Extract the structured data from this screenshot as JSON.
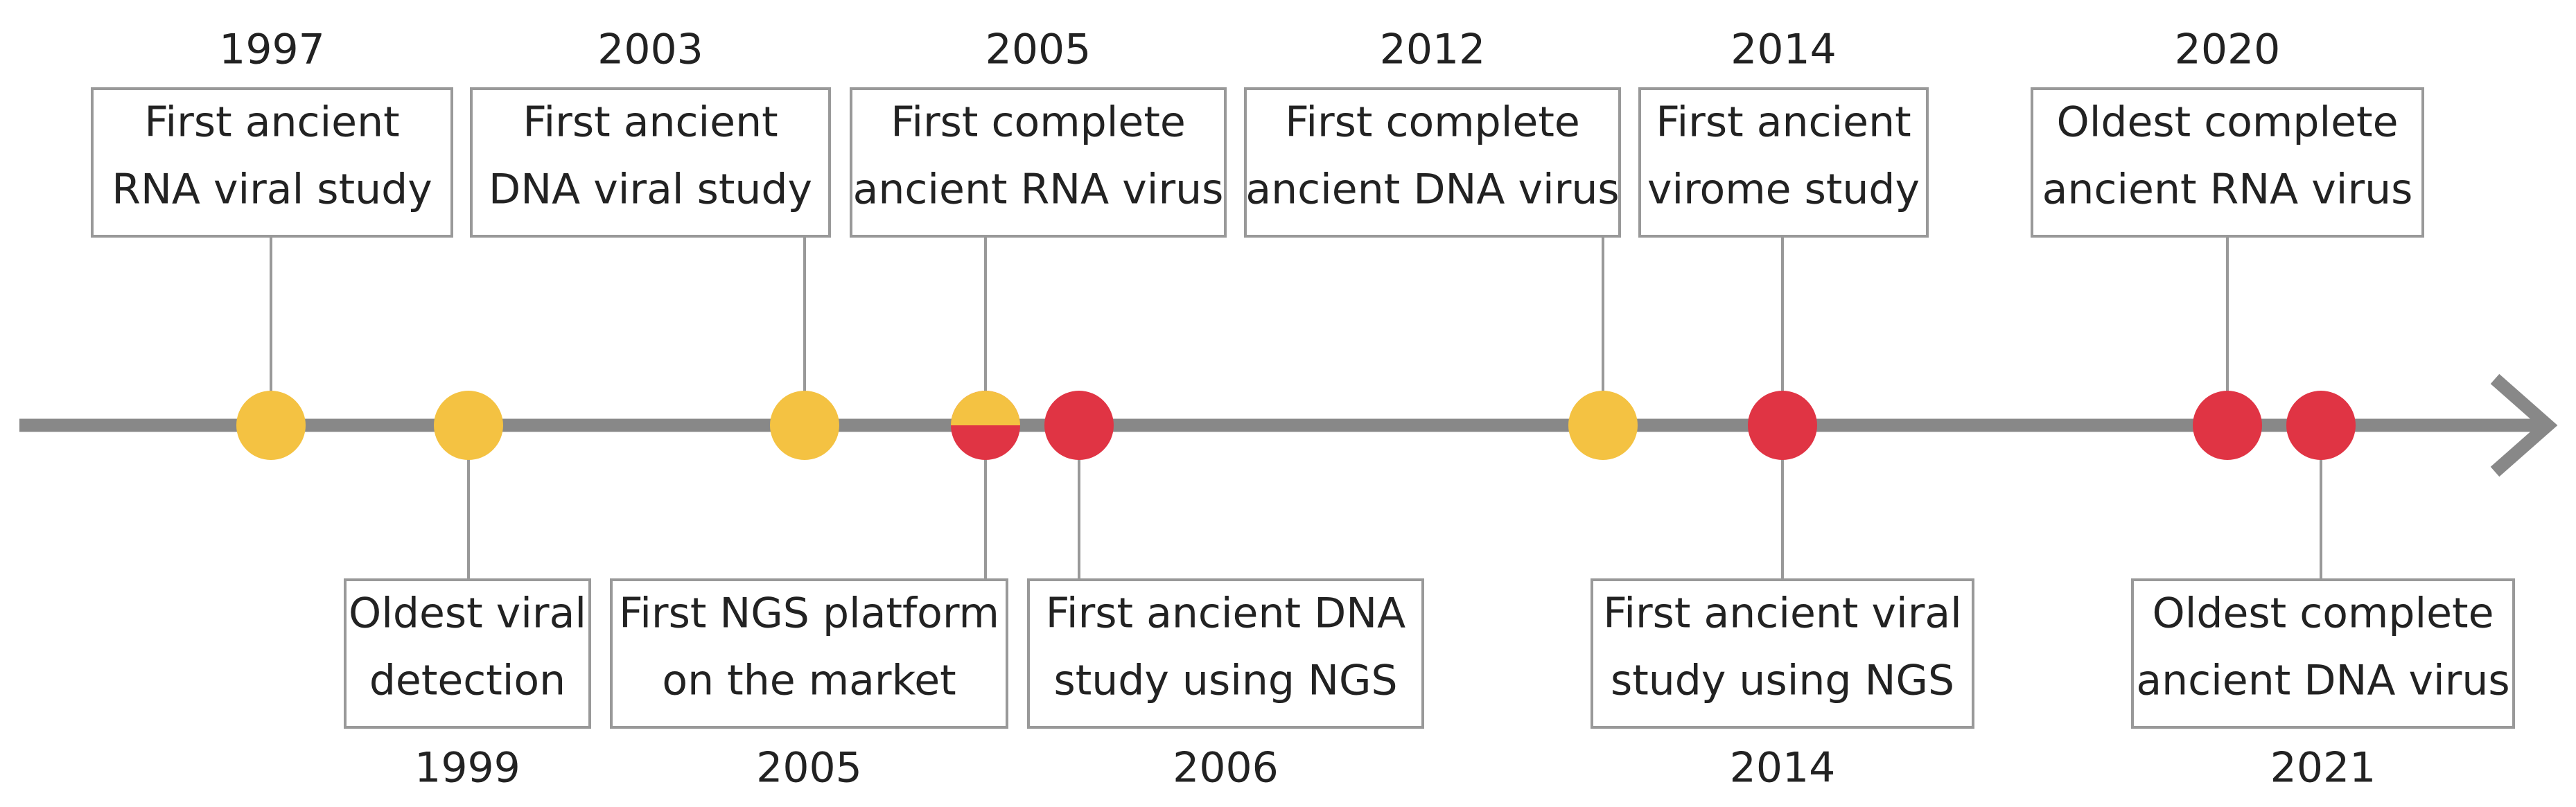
{
  "events": [
    {
      "year": "1997",
      "lines": [
        "First ancient",
        "RNA viral study"
      ]
    },
    {
      "year": "2003",
      "lines": [
        "First ancient",
        "DNA viral study"
      ]
    },
    {
      "year": "2005",
      "lines": [
        "First complete",
        "ancient RNA virus"
      ]
    },
    {
      "year": "2012",
      "lines": [
        "First complete",
        "ancient DNA virus"
      ]
    },
    {
      "year": "2014",
      "lines": [
        "First ancient",
        "virome study"
      ]
    },
    {
      "year": "2020",
      "lines": [
        "Oldest complete",
        "ancient RNA virus"
      ]
    },
    {
      "year": "1999",
      "lines": [
        "Oldest viral",
        "detection"
      ]
    },
    {
      "year": "2005",
      "lines": [
        "First NGS platform",
        "on the market"
      ]
    },
    {
      "year": "2006",
      "lines": [
        "First ancient DNA",
        "study using NGS"
      ]
    },
    {
      "year": "2014",
      "lines": [
        "First ancient viral",
        "study using NGS"
      ]
    },
    {
      "year": "2021",
      "lines": [
        "Oldest complete",
        "ancient DNA virus"
      ]
    }
  ]
}
